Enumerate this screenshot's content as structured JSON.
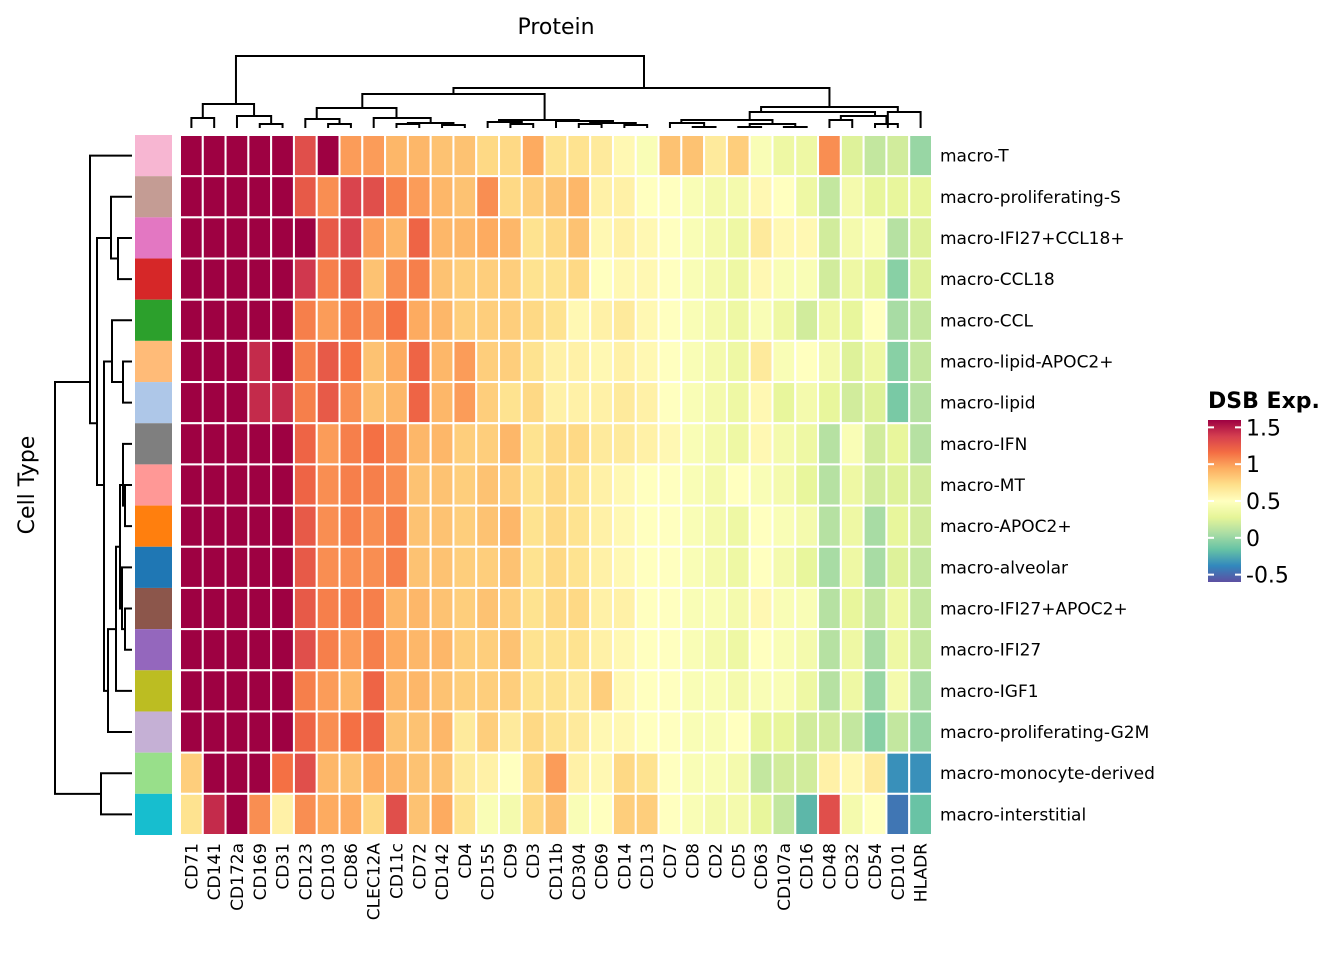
{
  "chart_data": {
    "type": "heatmap",
    "title": "Protein",
    "xlabel": "Protein",
    "ylabel": "Cell Type",
    "columns": [
      "CD71",
      "CD141",
      "CD172a",
      "CD169",
      "CD31",
      "CD123",
      "CD103",
      "CD86",
      "CLEC12A",
      "CD11c",
      "CD72",
      "CD142",
      "CD4",
      "CD155",
      "CD9",
      "CD3",
      "CD11b",
      "CD304",
      "CD69",
      "CD14",
      "CD13",
      "CD7",
      "CD8",
      "CD2",
      "CD5",
      "CD63",
      "CD107a",
      "CD16",
      "CD48",
      "CD32",
      "CD54",
      "CD101",
      "HLADR"
    ],
    "rows": [
      "macro-T",
      "macro-proliferating-S",
      "macro-IFI27+CCL18+",
      "macro-CCL18",
      "macro-CCL",
      "macro-lipid-APOC2+",
      "macro-lipid",
      "macro-IFN",
      "macro-MT",
      "macro-APOC2+",
      "macro-alveolar",
      "macro-IFI27+APOC2+",
      "macro-IFI27",
      "macro-IGF1",
      "macro-proliferating-G2M",
      "macro-monocyte-derived",
      "macro-interstitial"
    ],
    "row_colors": [
      "#f7b6d2",
      "#c49c94",
      "#e377c2",
      "#d62728",
      "#2ca02c",
      "#ffbb78",
      "#aec7e8",
      "#7f7f7f",
      "#ff9896",
      "#ff7f0e",
      "#1f77b4",
      "#8c564b",
      "#9467bd",
      "#bcbd22",
      "#c5b0d5",
      "#98df8a",
      "#17becf"
    ],
    "values": [
      [
        1.6,
        1.6,
        1.6,
        1.6,
        1.6,
        1.3,
        1.6,
        1.0,
        1.0,
        0.9,
        0.9,
        0.85,
        0.85,
        0.75,
        0.75,
        0.95,
        0.7,
        0.7,
        0.65,
        0.55,
        0.45,
        0.85,
        0.85,
        0.65,
        0.8,
        0.45,
        0.35,
        0.35,
        1.05,
        0.25,
        0.15,
        0.2,
        0.0
      ],
      [
        1.6,
        1.6,
        1.6,
        1.6,
        1.6,
        1.25,
        1.05,
        1.35,
        1.3,
        1.1,
        1.0,
        0.9,
        0.85,
        1.05,
        0.75,
        0.8,
        0.85,
        0.9,
        0.6,
        0.6,
        0.5,
        0.5,
        0.45,
        0.4,
        0.4,
        0.55,
        0.5,
        0.35,
        0.15,
        0.4,
        0.3,
        0.3,
        0.3
      ],
      [
        1.6,
        1.6,
        1.6,
        1.6,
        1.6,
        1.6,
        1.25,
        1.35,
        1.0,
        0.9,
        1.2,
        0.9,
        0.9,
        0.95,
        0.9,
        0.7,
        0.75,
        0.85,
        0.55,
        0.6,
        0.55,
        0.5,
        0.45,
        0.4,
        0.35,
        0.65,
        0.55,
        0.55,
        0.2,
        0.4,
        0.45,
        0.1,
        0.25
      ],
      [
        1.6,
        1.6,
        1.6,
        1.6,
        1.6,
        1.4,
        1.1,
        1.25,
        0.85,
        1.05,
        1.1,
        0.85,
        0.8,
        0.8,
        0.8,
        0.7,
        0.7,
        0.75,
        0.5,
        0.55,
        0.55,
        0.5,
        0.45,
        0.4,
        0.35,
        0.55,
        0.45,
        0.45,
        0.2,
        0.35,
        0.3,
        -0.05,
        0.25
      ],
      [
        1.6,
        1.6,
        1.6,
        1.6,
        1.6,
        1.1,
        1.0,
        1.1,
        1.05,
        1.15,
        0.95,
        0.9,
        0.8,
        0.8,
        0.8,
        0.75,
        0.7,
        0.55,
        0.6,
        0.65,
        0.55,
        0.5,
        0.45,
        0.4,
        0.35,
        0.45,
        0.35,
        0.2,
        0.35,
        0.3,
        0.5,
        0.05,
        0.15
      ],
      [
        1.6,
        1.6,
        1.6,
        1.45,
        1.6,
        1.1,
        1.25,
        1.15,
        0.85,
        0.95,
        1.2,
        0.9,
        1.0,
        0.8,
        0.8,
        0.7,
        0.6,
        0.6,
        0.55,
        0.6,
        0.55,
        0.5,
        0.45,
        0.4,
        0.35,
        0.65,
        0.45,
        0.5,
        0.4,
        0.25,
        0.35,
        -0.05,
        0.15
      ],
      [
        1.6,
        1.6,
        1.6,
        1.45,
        1.45,
        1.1,
        1.25,
        1.05,
        0.85,
        0.9,
        1.2,
        0.9,
        1.0,
        0.8,
        0.7,
        0.75,
        0.6,
        0.6,
        0.6,
        0.65,
        0.6,
        0.5,
        0.45,
        0.4,
        0.35,
        0.55,
        0.3,
        0.4,
        0.3,
        0.2,
        0.25,
        -0.1,
        0.1
      ],
      [
        1.6,
        1.6,
        1.6,
        1.6,
        1.6,
        1.2,
        1.0,
        1.1,
        1.15,
        1.05,
        0.9,
        0.9,
        0.8,
        0.8,
        0.9,
        0.7,
        0.75,
        0.75,
        0.65,
        0.65,
        0.6,
        0.55,
        0.45,
        0.4,
        0.35,
        0.55,
        0.4,
        0.35,
        0.1,
        0.45,
        0.2,
        0.3,
        0.1
      ],
      [
        1.6,
        1.6,
        1.6,
        1.6,
        1.6,
        1.2,
        1.05,
        1.1,
        1.1,
        1.05,
        0.85,
        0.85,
        0.8,
        0.85,
        0.8,
        0.7,
        0.75,
        0.7,
        0.6,
        0.55,
        0.5,
        0.5,
        0.45,
        0.4,
        0.5,
        0.45,
        0.4,
        0.3,
        0.1,
        0.35,
        0.2,
        0.25,
        0.2
      ],
      [
        1.6,
        1.6,
        1.6,
        1.6,
        1.6,
        1.25,
        1.05,
        1.1,
        1.05,
        1.1,
        0.85,
        0.85,
        0.8,
        0.85,
        0.9,
        0.7,
        0.75,
        0.7,
        0.6,
        0.55,
        0.5,
        0.5,
        0.45,
        0.4,
        0.35,
        0.5,
        0.45,
        0.4,
        0.1,
        0.35,
        0.05,
        0.3,
        0.2
      ],
      [
        1.6,
        1.6,
        1.6,
        1.6,
        1.6,
        1.25,
        1.05,
        1.05,
        1.05,
        1.1,
        0.85,
        0.85,
        0.8,
        0.8,
        0.85,
        0.7,
        0.75,
        0.7,
        0.6,
        0.55,
        0.5,
        0.5,
        0.45,
        0.4,
        0.35,
        0.5,
        0.4,
        0.3,
        0.05,
        0.35,
        0.05,
        0.25,
        0.15
      ],
      [
        1.6,
        1.6,
        1.6,
        1.6,
        1.6,
        1.25,
        1.1,
        1.1,
        1.1,
        0.9,
        0.9,
        0.85,
        0.8,
        0.85,
        0.8,
        0.7,
        0.75,
        0.75,
        0.6,
        0.6,
        0.5,
        0.5,
        0.45,
        0.45,
        0.4,
        0.55,
        0.45,
        0.45,
        0.1,
        0.3,
        0.15,
        0.35,
        0.15
      ],
      [
        1.6,
        1.6,
        1.6,
        1.6,
        1.6,
        1.3,
        1.1,
        1.0,
        1.1,
        0.95,
        0.9,
        0.9,
        0.8,
        0.8,
        0.85,
        0.7,
        0.7,
        0.7,
        0.6,
        0.55,
        0.5,
        0.5,
        0.45,
        0.4,
        0.35,
        0.5,
        0.45,
        0.4,
        0.1,
        0.35,
        0.05,
        0.35,
        0.15
      ],
      [
        1.6,
        1.6,
        1.6,
        1.6,
        1.6,
        1.1,
        1.0,
        0.9,
        1.2,
        0.9,
        0.9,
        0.85,
        0.8,
        0.8,
        0.8,
        0.7,
        0.7,
        0.65,
        0.8,
        0.55,
        0.5,
        0.5,
        0.45,
        0.45,
        0.4,
        0.45,
        0.45,
        0.35,
        0.1,
        0.35,
        0.0,
        0.4,
        0.05
      ],
      [
        1.6,
        1.6,
        1.6,
        1.6,
        1.6,
        1.2,
        1.05,
        1.15,
        1.2,
        0.85,
        0.85,
        0.9,
        0.65,
        0.8,
        0.65,
        0.75,
        0.7,
        0.65,
        0.55,
        0.55,
        0.5,
        0.5,
        0.45,
        0.45,
        0.5,
        0.3,
        0.3,
        0.2,
        0.2,
        0.15,
        -0.05,
        0.15,
        0.0
      ],
      [
        0.8,
        1.6,
        1.6,
        1.6,
        1.15,
        1.3,
        0.9,
        0.85,
        0.95,
        0.9,
        0.85,
        0.85,
        0.65,
        0.6,
        0.5,
        0.75,
        1.0,
        0.6,
        0.55,
        0.75,
        0.7,
        0.5,
        0.45,
        0.45,
        0.4,
        0.15,
        0.2,
        0.2,
        0.6,
        0.55,
        0.65,
        -0.35,
        -0.35
      ],
      [
        0.7,
        1.45,
        1.6,
        1.05,
        0.6,
        1.05,
        0.95,
        0.95,
        0.75,
        1.3,
        0.85,
        0.95,
        0.7,
        0.45,
        0.4,
        0.75,
        0.85,
        0.45,
        0.5,
        0.8,
        0.8,
        0.5,
        0.45,
        0.4,
        0.4,
        0.3,
        0.15,
        -0.2,
        1.3,
        0.4,
        0.5,
        -0.45,
        -0.15
      ]
    ],
    "colorbar": {
      "title": "DSB Exp.",
      "ticks": [
        "1.5",
        "1",
        "0.5",
        "0",
        "-0.5"
      ],
      "tick_values": [
        1.5,
        1.0,
        0.5,
        0.0,
        -0.5
      ],
      "range": [
        -0.6,
        1.6
      ],
      "colormap": "Spectral (reversed)",
      "stops": [
        "#5e4fa2",
        "#3288bd",
        "#66c2a5",
        "#abdda4",
        "#e6f598",
        "#ffffbf",
        "#fee08b",
        "#fdae61",
        "#f46d43",
        "#d53e4f",
        "#9e0142"
      ]
    },
    "column_dendrogram": true,
    "row_dendrogram": true,
    "cell_border_color": "#ffffff",
    "legend_position": "right"
  }
}
